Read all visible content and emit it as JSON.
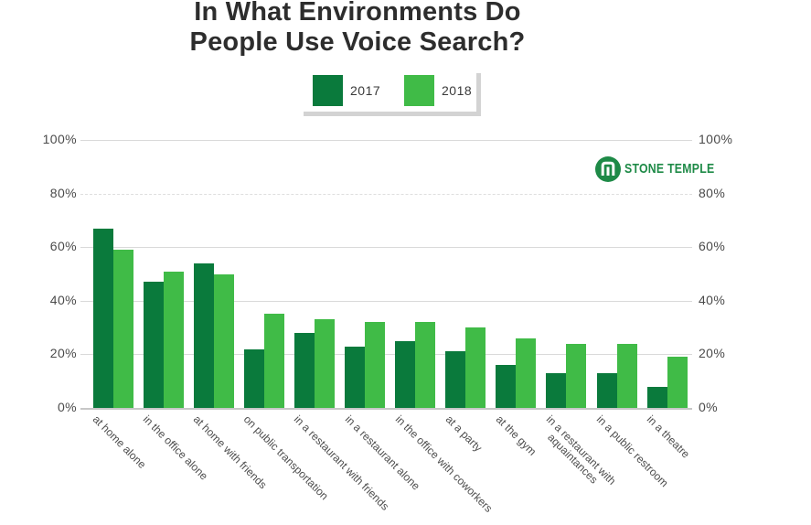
{
  "title": {
    "line1": "In What Environments Do",
    "line2": "People Use Voice Search?"
  },
  "legend": {
    "items": [
      {
        "label": "2017",
        "color": "#0a7a3c"
      },
      {
        "label": "2018",
        "color": "#40bb47"
      }
    ]
  },
  "branding": {
    "logo_icon": "stone-temple-icon",
    "logo_text": "STONE TEMPLE",
    "logo_color": "#1e8a47"
  },
  "chart_data": {
    "type": "bar",
    "title": "In What Environments Do People Use Voice Search?",
    "categories": [
      "at home alone",
      "in the office alone",
      "at home with friends",
      "on public transportation",
      "in a restaurant with friends",
      "in a restaurant alone",
      "in the office with coworkers",
      "at a party",
      "at the gym",
      "in a restaurant with\naquaintances",
      "in a public restroom",
      "in a theatre"
    ],
    "series": [
      {
        "name": "2017",
        "color": "#0a7a3c",
        "values": [
          67,
          47,
          54,
          22,
          28,
          23,
          25,
          21,
          16,
          13,
          13,
          8
        ]
      },
      {
        "name": "2018",
        "color": "#40bb47",
        "values": [
          59,
          51,
          50,
          35,
          33,
          32,
          32,
          30,
          26,
          24,
          24,
          19
        ]
      }
    ],
    "xlabel": "",
    "ylabel": "",
    "ylim": [
      0,
      100
    ],
    "y_ticks": [
      "0%",
      "20%",
      "40%",
      "60%",
      "80%",
      "100%"
    ],
    "y_axis_sides": "both",
    "grid": true,
    "grid_dashed_at": 80,
    "legend_position": "top",
    "x_label_rotation_deg": 45
  }
}
